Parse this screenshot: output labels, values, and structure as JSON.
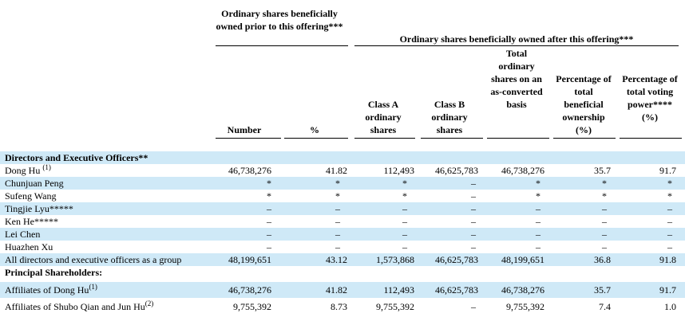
{
  "header": {
    "group_before": "Ordinary shares beneficially owned prior to this offering***",
    "group_after": "Ordinary shares beneficially owned after this offering***",
    "columns": [
      "Number",
      "%",
      "Class A ordinary shares",
      "Class B ordinary shares",
      "Total ordinary shares on an as-converted basis",
      "Percentage of total beneficial ownership (%)",
      "Percentage of total voting power**** (%)"
    ]
  },
  "sections": {
    "directors": "Directors and Executive Officers**",
    "principal": "Principal Shareholders:"
  },
  "rows": [
    {
      "name": "Dong Hu",
      "note": "(1)",
      "values": [
        "46,738,276",
        "41.82",
        "112,493",
        "46,625,783",
        "46,738,276",
        "35.7",
        "91.7"
      ]
    },
    {
      "name": "Chunjuan Peng",
      "note": "",
      "values": [
        "*",
        "*",
        "*",
        "–",
        "*",
        "*",
        "*"
      ]
    },
    {
      "name": "Sufeng Wang",
      "note": "",
      "values": [
        "*",
        "*",
        "*",
        "–",
        "*",
        "*",
        "*"
      ]
    },
    {
      "name": "Tingjie Lyu*****",
      "note": "",
      "values": [
        "–",
        "–",
        "–",
        "–",
        "–",
        "–",
        "–"
      ]
    },
    {
      "name": "Ken He*****",
      "note": "",
      "values": [
        "–",
        "–",
        "–",
        "–",
        "–",
        "–",
        "–"
      ]
    },
    {
      "name": "Lei Chen",
      "note": "",
      "values": [
        "–",
        "–",
        "–",
        "–",
        "–",
        "–",
        "–"
      ]
    },
    {
      "name": "Huazhen Xu",
      "note": "",
      "values": [
        "–",
        "–",
        "–",
        "–",
        "–",
        "–",
        "–"
      ]
    },
    {
      "name": "All directors and executive officers as a group",
      "note": "",
      "values": [
        "48,199,651",
        "43.12",
        "1,573,868",
        "46,625,783",
        "48,199,651",
        "36.8",
        "91.8"
      ]
    },
    {
      "name": "Affiliates of Dong Hu",
      "note": "(1)",
      "values": [
        "46,738,276",
        "41.82",
        "112,493",
        "46,625,783",
        "46,738,276",
        "35.7",
        "91.7"
      ]
    },
    {
      "name": "Affiliates of Shubo Qian and Jun Hu",
      "note": "(2)",
      "values": [
        "9,755,392",
        "8.73",
        "9,755,392",
        "–",
        "9,755,392",
        "7.4",
        "1.0"
      ]
    }
  ]
}
